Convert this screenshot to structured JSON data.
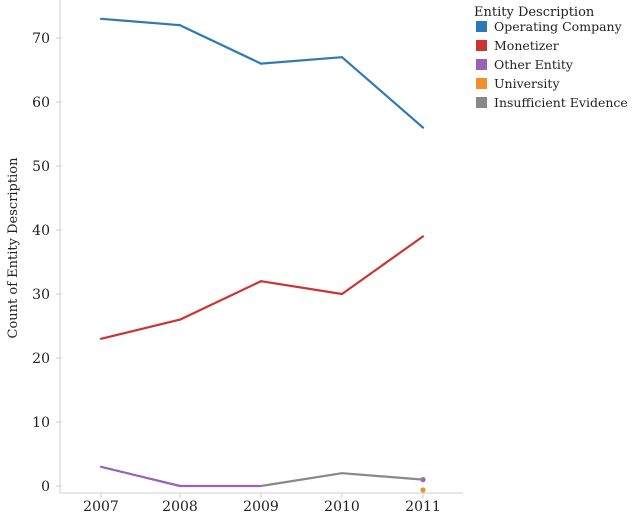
{
  "chart_data": {
    "type": "line",
    "title": "",
    "xlabel": "",
    "ylabel": "Count of Entity Description",
    "x": [
      "2007",
      "2008",
      "2009",
      "2010",
      "2011"
    ],
    "yticks": [
      "0",
      "10",
      "20",
      "30",
      "40",
      "50",
      "60",
      "70"
    ],
    "ylim": [
      0,
      75
    ],
    "grid": false,
    "legend_title": "Entity Description",
    "legend_position": "top-right",
    "series": [
      {
        "name": "Operating Company",
        "color": "#2e7ab6",
        "values": [
          73,
          72,
          66,
          67,
          56
        ]
      },
      {
        "name": "Monetizer",
        "color": "#cc3333",
        "values": [
          23,
          26,
          32,
          30,
          39
        ]
      },
      {
        "name": "Other Entity",
        "color": "#9a62b5",
        "values": [
          3,
          0,
          0,
          null,
          1
        ]
      },
      {
        "name": "University",
        "color": "#f28e2b",
        "values": [
          null,
          null,
          null,
          null,
          0
        ]
      },
      {
        "name": "Insufficient Evidence",
        "color": "#888888",
        "values": [
          null,
          null,
          0,
          2,
          1
        ]
      }
    ]
  }
}
